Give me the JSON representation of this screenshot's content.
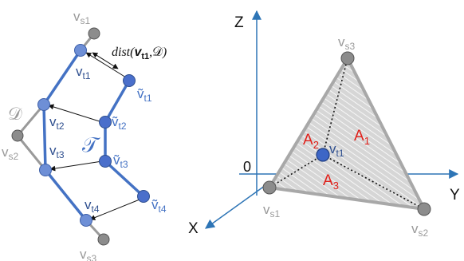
{
  "colors": {
    "blue": "#4472C4",
    "dark_blue": "#2F4F8F",
    "node_blue": "#4A6FCB",
    "gray": "#9A9A9A",
    "node_gray": "#8C8C8C",
    "triangle_fill": "#D6D6D6",
    "axis": "#2E75B6",
    "red": "#E0201A",
    "black": "#111111"
  },
  "left": {
    "D": "𝒟",
    "tau": "𝒯",
    "vs": {
      "s1": "s1",
      "s2": "s2",
      "s3": "s3"
    },
    "vt": {
      "t1": "t1",
      "t2": "t2",
      "t3": "t3",
      "t4": "t4"
    },
    "dist": {
      "fn": "dist(",
      "v": "v",
      "sub": "t1",
      "comma": ",",
      "set": "𝒟",
      "close": ")"
    }
  },
  "right": {
    "axes": {
      "z": "Z",
      "y": "Y",
      "x": "X",
      "origin": "0"
    },
    "areas": {
      "a1": "1",
      "a2": "2",
      "a3": "3"
    },
    "vs": {
      "s1": "s1",
      "s2": "s2",
      "s3": "s3"
    },
    "vt1": "t1"
  }
}
